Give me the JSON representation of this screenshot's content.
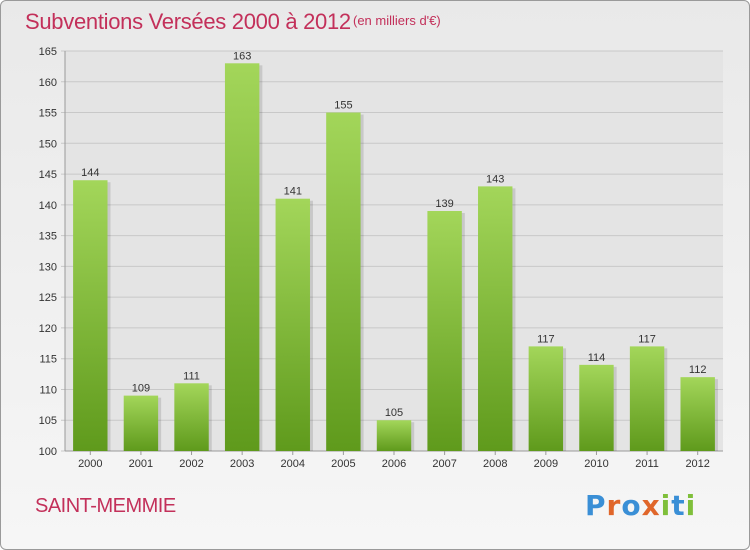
{
  "header": {
    "title": "Subventions Versées 2000 à 2012",
    "unit_note": "(en milliers d'€)"
  },
  "footer": {
    "place": "SAINT-MEMMIE",
    "brand": "Proxiti"
  },
  "colors": {
    "title": "#c3305a",
    "bar_top": "#a3d65a",
    "bar_bottom": "#5f9a1c",
    "grid": "#c8c8c8",
    "brand_letters": [
      "#3a8fd6",
      "#e0662a",
      "#3a8fd6",
      "#e0662a",
      "#7fbf3a",
      "#3a8fd6",
      "#7fbf3a"
    ]
  },
  "chart_data": {
    "type": "bar",
    "title": "Subventions Versées 2000 à 2012",
    "subtitle": "(en milliers d'€)",
    "categories": [
      "2000",
      "2001",
      "2002",
      "2003",
      "2004",
      "2005",
      "2006",
      "2007",
      "2008",
      "2009",
      "2010",
      "2011",
      "2012"
    ],
    "values": [
      144,
      109,
      111,
      163,
      141,
      155,
      105,
      139,
      143,
      117,
      114,
      117,
      112
    ],
    "ylim": [
      100,
      165
    ],
    "yticks": [
      100,
      105,
      110,
      115,
      120,
      125,
      130,
      135,
      140,
      145,
      150,
      155,
      160,
      165
    ],
    "xlabel": "",
    "ylabel": "",
    "grid": true
  }
}
